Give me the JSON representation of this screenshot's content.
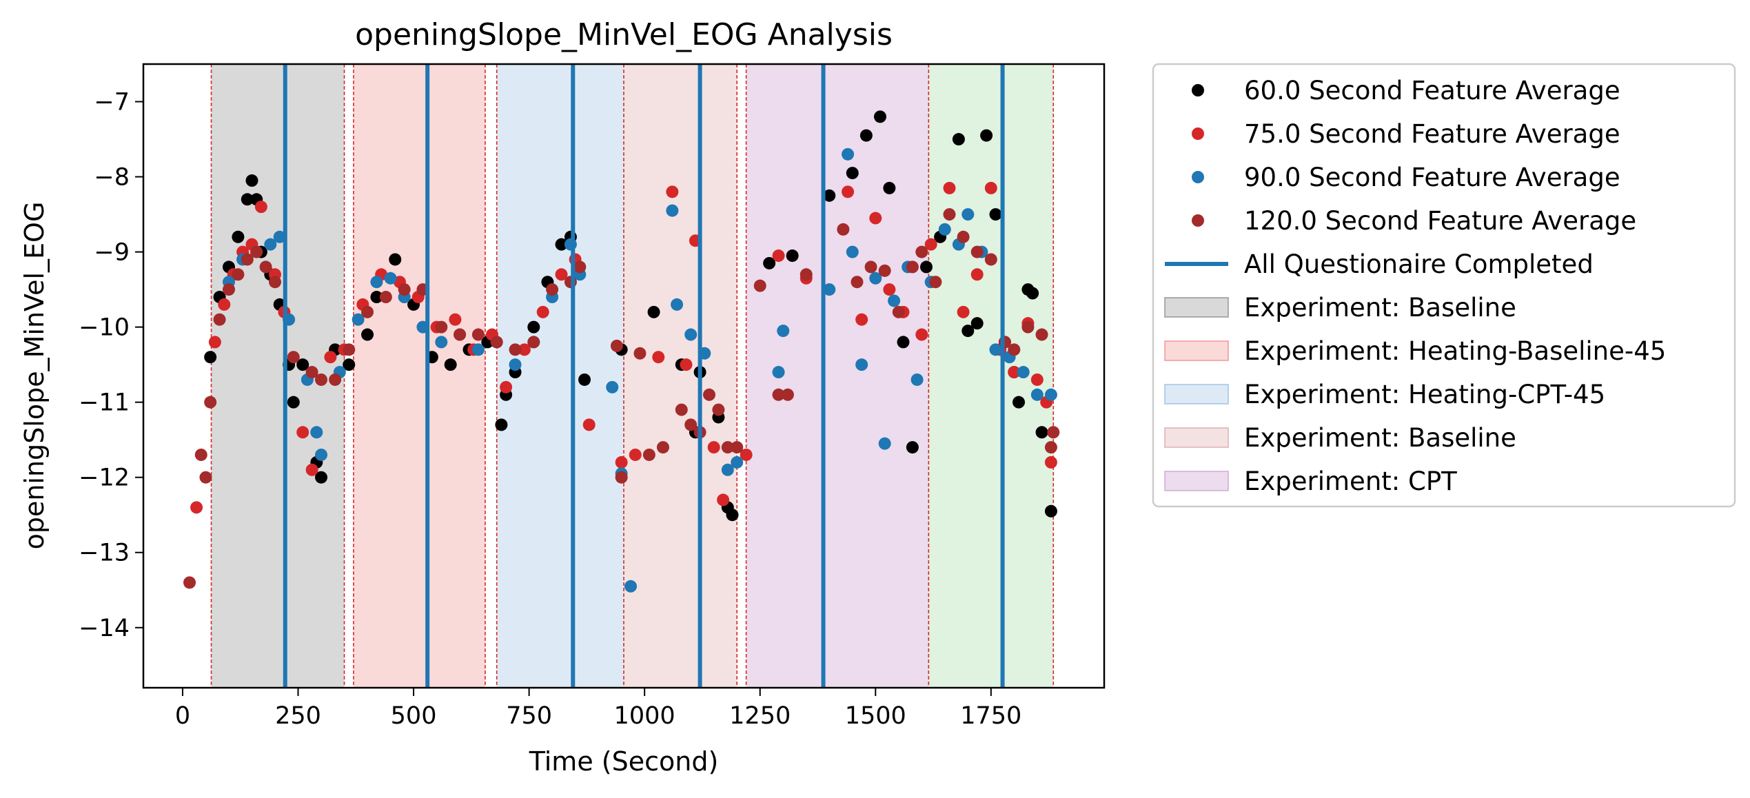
{
  "chart_data": {
    "type": "scatter",
    "title": "openingSlope_MinVel_EOG Analysis",
    "xlabel": "Time (Second)",
    "ylabel": "openingSlope_MinVel_EOG",
    "xlim": [
      -85,
      1995
    ],
    "ylim": [
      -14.8,
      -6.5
    ],
    "x_ticks": [
      0,
      250,
      500,
      750,
      1000,
      1250,
      1500,
      1750
    ],
    "x_tick_labels": [
      "0",
      "250",
      "500",
      "750",
      "1000",
      "1250",
      "1500",
      "1750"
    ],
    "y_ticks": [
      -7,
      -8,
      -9,
      -10,
      -11,
      -12,
      -13,
      -14
    ],
    "y_tick_labels": [
      "−7",
      "−8",
      "−9",
      "−10",
      "−11",
      "−12",
      "−13",
      "−14"
    ],
    "grid": false,
    "legend_position": "outside-right",
    "series": [
      {
        "name": "60.0 Second Feature Average",
        "color": "#000000",
        "x": [
          60,
          80,
          100,
          120,
          140,
          150,
          160,
          170,
          190,
          210,
          230,
          240,
          260,
          290,
          300,
          330,
          360,
          400,
          420,
          460,
          500,
          540,
          580,
          620,
          660,
          690,
          700,
          720,
          760,
          790,
          820,
          840,
          870,
          950,
          1020,
          1080,
          1110,
          1120,
          1160,
          1180,
          1190,
          1270,
          1320,
          1400,
          1450,
          1480,
          1510,
          1530,
          1560,
          1580,
          1610,
          1640,
          1680,
          1700,
          1720,
          1740,
          1760,
          1780,
          1800,
          1810,
          1830,
          1840,
          1860,
          1880
        ],
        "y": [
          -10.4,
          -9.6,
          -9.2,
          -8.8,
          -8.3,
          -8.05,
          -8.3,
          -9.0,
          -9.3,
          -9.7,
          -10.5,
          -11.0,
          -10.5,
          -11.8,
          -12.0,
          -10.3,
          -10.5,
          -10.1,
          -9.6,
          -9.1,
          -9.7,
          -10.4,
          -10.5,
          -10.3,
          -10.2,
          -11.3,
          -10.9,
          -10.6,
          -10.0,
          -9.4,
          -8.9,
          -8.8,
          -10.7,
          -10.3,
          -9.8,
          -10.5,
          -11.4,
          -10.6,
          -11.2,
          -12.4,
          -12.5,
          -9.15,
          -9.05,
          -8.25,
          -7.95,
          -7.45,
          -7.2,
          -8.15,
          -10.2,
          -11.6,
          -9.2,
          -8.8,
          -7.5,
          -10.05,
          -9.95,
          -7.45,
          -8.5,
          -10.2,
          -10.6,
          -11.0,
          -9.5,
          -9.55,
          -11.4,
          -12.45
        ]
      },
      {
        "name": "75.0 Second Feature Average",
        "color": "#d62728",
        "x": [
          30,
          70,
          90,
          110,
          130,
          150,
          170,
          200,
          220,
          260,
          280,
          320,
          350,
          390,
          430,
          470,
          510,
          550,
          590,
          630,
          670,
          700,
          740,
          780,
          820,
          850,
          880,
          950,
          980,
          1030,
          1060,
          1090,
          1110,
          1150,
          1170,
          1220,
          1290,
          1350,
          1440,
          1470,
          1500,
          1530,
          1560,
          1600,
          1620,
          1660,
          1690,
          1720,
          1750,
          1770,
          1800,
          1830,
          1850,
          1870,
          1880
        ],
        "y": [
          -12.4,
          -10.2,
          -9.7,
          -9.3,
          -9.0,
          -8.9,
          -8.4,
          -9.3,
          -9.8,
          -11.4,
          -11.9,
          -10.4,
          -10.3,
          -9.7,
          -9.3,
          -9.4,
          -9.6,
          -10.0,
          -9.9,
          -10.3,
          -10.1,
          -10.8,
          -10.3,
          -9.8,
          -9.3,
          -9.1,
          -11.3,
          -11.8,
          -11.7,
          -10.4,
          -8.2,
          -10.5,
          -8.85,
          -11.6,
          -12.3,
          -11.7,
          -9.05,
          -9.35,
          -8.2,
          -9.9,
          -8.55,
          -9.5,
          -9.8,
          -10.1,
          -8.9,
          -8.15,
          -9.8,
          -9.3,
          -8.15,
          -10.3,
          -10.6,
          -9.95,
          -10.7,
          -11.0,
          -11.8
        ]
      },
      {
        "name": "90.0 Second Feature Average",
        "color": "#1f77b4",
        "x": [
          100,
          130,
          160,
          190,
          210,
          230,
          270,
          290,
          300,
          340,
          380,
          420,
          450,
          480,
          520,
          560,
          600,
          640,
          680,
          720,
          760,
          800,
          840,
          860,
          930,
          950,
          970,
          1060,
          1070,
          1100,
          1130,
          1180,
          1200,
          1290,
          1300,
          1400,
          1440,
          1450,
          1470,
          1500,
          1520,
          1540,
          1570,
          1590,
          1620,
          1650,
          1680,
          1700,
          1730,
          1760,
          1790,
          1820,
          1850,
          1880
        ],
        "y": [
          -9.4,
          -9.1,
          -9.0,
          -8.9,
          -8.8,
          -9.9,
          -10.7,
          -11.4,
          -11.7,
          -10.6,
          -9.9,
          -9.4,
          -9.35,
          -9.6,
          -10.0,
          -10.2,
          -10.1,
          -10.3,
          -10.2,
          -10.5,
          -10.2,
          -9.6,
          -8.9,
          -9.3,
          -10.8,
          -11.95,
          -13.45,
          -8.45,
          -9.7,
          -10.1,
          -10.35,
          -11.9,
          -11.8,
          -10.6,
          -10.05,
          -9.5,
          -7.7,
          -9.0,
          -10.5,
          -9.35,
          -11.55,
          -9.65,
          -9.2,
          -10.7,
          -9.4,
          -8.7,
          -8.9,
          -8.5,
          -9.0,
          -10.3,
          -10.4,
          -10.6,
          -10.9,
          -10.9
        ]
      },
      {
        "name": "120.0 Second Feature Average",
        "color": "#a52a2a",
        "x": [
          15,
          40,
          50,
          60,
          80,
          100,
          120,
          140,
          160,
          180,
          200,
          240,
          280,
          300,
          330,
          360,
          400,
          440,
          480,
          520,
          560,
          600,
          640,
          680,
          720,
          760,
          800,
          840,
          860,
          940,
          950,
          990,
          1010,
          1040,
          1080,
          1100,
          1120,
          1140,
          1160,
          1180,
          1200,
          1250,
          1290,
          1310,
          1350,
          1430,
          1460,
          1490,
          1520,
          1550,
          1580,
          1600,
          1630,
          1660,
          1690,
          1720,
          1750,
          1780,
          1800,
          1830,
          1860,
          1880,
          1885
        ],
        "y": [
          -13.4,
          -11.7,
          -12.0,
          -11.0,
          -9.9,
          -9.5,
          -9.3,
          -9.1,
          -9.0,
          -9.2,
          -9.4,
          -10.4,
          -10.6,
          -10.7,
          -10.7,
          -10.3,
          -9.8,
          -9.6,
          -9.5,
          -9.5,
          -10.0,
          -10.1,
          -10.1,
          -10.2,
          -10.3,
          -10.2,
          -9.5,
          -9.4,
          -9.2,
          -10.25,
          -12.0,
          -10.35,
          -11.7,
          -11.6,
          -11.1,
          -11.3,
          -11.4,
          -10.9,
          -11.1,
          -11.6,
          -11.6,
          -9.45,
          -10.9,
          -10.9,
          -9.3,
          -8.7,
          -9.4,
          -9.2,
          -9.25,
          -9.8,
          -9.2,
          -9.0,
          -9.4,
          -8.5,
          -8.8,
          -9.0,
          -9.1,
          -10.2,
          -10.3,
          -10.0,
          -10.1,
          -11.6,
          -11.4
        ]
      }
    ],
    "vlines": {
      "name": "All Questionaire Completed",
      "color": "#1f77b4",
      "x": [
        222,
        530,
        845,
        1120,
        1387,
        1775
      ]
    },
    "spans": [
      {
        "name": "Experiment: Baseline",
        "color": "#808080",
        "alpha": 0.3,
        "start": 62,
        "end": 350
      },
      {
        "name": "Experiment: Heating-Baseline-45",
        "color": "#f08080",
        "alpha": 0.3,
        "start": 370,
        "end": 655
      },
      {
        "name": "Experiment: Heating-CPT-45",
        "color": "#8fb8de",
        "alpha": 0.3,
        "start": 680,
        "end": 955
      },
      {
        "name": "Experiment: Baseline",
        "color": "#d9a0a0",
        "alpha": 0.3,
        "start": 955,
        "end": 1200
      },
      {
        "name": "Experiment: CPT",
        "color": "#c89acb",
        "alpha": 0.35,
        "start": 1220,
        "end": 1615
      },
      {
        "name": "",
        "color": "#98d498",
        "alpha": 0.3,
        "start": 1615,
        "end": 1885
      }
    ],
    "span_boundaries": [
      62,
      350,
      370,
      655,
      680,
      955,
      1200,
      1220,
      1615,
      1885
    ]
  }
}
